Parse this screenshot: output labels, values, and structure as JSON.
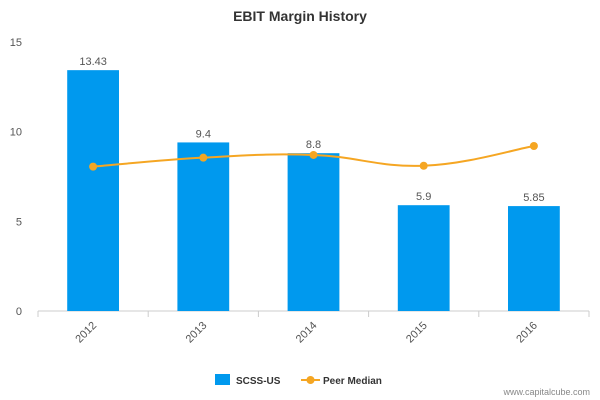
{
  "chart_data": {
    "type": "bar",
    "title": "EBIT Margin History",
    "categories": [
      "2012",
      "2013",
      "2014",
      "2015",
      "2016"
    ],
    "series": [
      {
        "name": "SCSS-US",
        "type": "bar",
        "color": "#0099ee",
        "values": [
          13.43,
          9.4,
          8.8,
          5.9,
          5.85
        ],
        "labels": [
          "13.43",
          "9.4",
          "8.8",
          "5.9",
          "5.85"
        ]
      },
      {
        "name": "Peer Median",
        "type": "line",
        "color": "#f5a623",
        "values": [
          8.05,
          8.55,
          8.7,
          8.1,
          9.2
        ]
      }
    ],
    "yticks": [
      "0",
      "5",
      "10",
      "15"
    ],
    "ylim": [
      0,
      15
    ],
    "grid": false,
    "legend": "bottom-center"
  },
  "watermark": "www.capitalcube.com"
}
